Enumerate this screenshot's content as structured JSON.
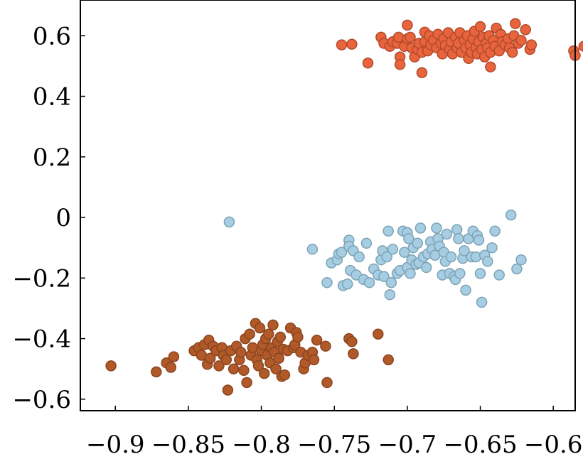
{
  "chart_data": {
    "type": "scatter",
    "title": "",
    "xlabel": "",
    "ylabel": "",
    "xlim": [
      -0.924,
      -0.585
    ],
    "ylim": [
      -0.638,
      0.718
    ],
    "grid": false,
    "legend": "none",
    "x_ticks": [
      -0.9,
      -0.85,
      -0.8,
      -0.75,
      -0.7,
      -0.65,
      -0.6
    ],
    "x_tick_labels": [
      "−0.9",
      "−0.85",
      "−0.8",
      "−0.75",
      "−0.7",
      "−0.65",
      "−0.6"
    ],
    "y_ticks": [
      -0.6,
      -0.4,
      -0.2,
      0,
      0.2,
      0.4,
      0.6
    ],
    "y_tick_labels": [
      "−0.6",
      "−0.4",
      "−0.2",
      "0",
      "0.2",
      "0.4",
      "0.6"
    ],
    "series": [
      {
        "color": "#e8643c",
        "edge": "#b24a2c",
        "points": [
          [
            -0.745,
            0.57
          ],
          [
            -0.738,
            0.572
          ],
          [
            -0.727,
            0.51
          ],
          [
            -0.718,
            0.595
          ],
          [
            -0.716,
            0.575
          ],
          [
            -0.712,
            0.565
          ],
          [
            -0.71,
            0.58
          ],
          [
            -0.707,
            0.575
          ],
          [
            -0.706,
            0.595
          ],
          [
            -0.705,
            0.53
          ],
          [
            -0.705,
            0.505
          ],
          [
            -0.702,
            0.565
          ],
          [
            -0.7,
            0.59
          ],
          [
            -0.7,
            0.635
          ],
          [
            -0.698,
            0.595
          ],
          [
            -0.697,
            0.56
          ],
          [
            -0.695,
            0.53
          ],
          [
            -0.693,
            0.555
          ],
          [
            -0.692,
            0.575
          ],
          [
            -0.69,
            0.545
          ],
          [
            -0.69,
            0.478
          ],
          [
            -0.688,
            0.612
          ],
          [
            -0.688,
            0.58
          ],
          [
            -0.686,
            0.55
          ],
          [
            -0.685,
            0.6
          ],
          [
            -0.684,
            0.57
          ],
          [
            -0.682,
            0.585
          ],
          [
            -0.68,
            0.56
          ],
          [
            -0.679,
            0.605
          ],
          [
            -0.677,
            0.575
          ],
          [
            -0.676,
            0.54
          ],
          [
            -0.675,
            0.59
          ],
          [
            -0.674,
            0.568
          ],
          [
            -0.672,
            0.61
          ],
          [
            -0.671,
            0.555
          ],
          [
            -0.67,
            0.58
          ],
          [
            -0.669,
            0.54
          ],
          [
            -0.667,
            0.595
          ],
          [
            -0.666,
            0.56
          ],
          [
            -0.665,
            0.575
          ],
          [
            -0.664,
            0.61
          ],
          [
            -0.663,
            0.545
          ],
          [
            -0.661,
            0.585
          ],
          [
            -0.66,
            0.56
          ],
          [
            -0.659,
            0.6
          ],
          [
            -0.658,
            0.525
          ],
          [
            -0.657,
            0.57
          ],
          [
            -0.656,
            0.545
          ],
          [
            -0.655,
            0.59
          ],
          [
            -0.654,
            0.615
          ],
          [
            -0.653,
            0.56
          ],
          [
            -0.652,
            0.54
          ],
          [
            -0.651,
            0.58
          ],
          [
            -0.65,
            0.63
          ],
          [
            -0.649,
            0.555
          ],
          [
            -0.648,
            0.595
          ],
          [
            -0.647,
            0.53
          ],
          [
            -0.646,
            0.575
          ],
          [
            -0.645,
            0.56
          ],
          [
            -0.644,
            0.6
          ],
          [
            -0.643,
            0.545
          ],
          [
            -0.643,
            0.497
          ],
          [
            -0.641,
            0.585
          ],
          [
            -0.64,
            0.565
          ],
          [
            -0.639,
            0.625
          ],
          [
            -0.637,
            0.55
          ],
          [
            -0.636,
            0.605
          ],
          [
            -0.635,
            0.58
          ],
          [
            -0.633,
            0.57
          ],
          [
            -0.631,
            0.59
          ],
          [
            -0.63,
            0.56
          ],
          [
            -0.628,
            0.545
          ],
          [
            -0.627,
            0.6
          ],
          [
            -0.626,
            0.64
          ],
          [
            -0.624,
            0.575
          ],
          [
            -0.622,
            0.585
          ],
          [
            -0.619,
            0.62
          ],
          [
            -0.616,
            0.555
          ],
          [
            -0.615,
            0.57
          ],
          [
            -0.586,
            0.55
          ],
          [
            -0.585,
            0.535
          ],
          [
            -0.579,
            0.565
          ],
          [
            -0.575,
            0.545
          ]
        ]
      },
      {
        "color": "#a6cde2",
        "edge": "#7ca3b6",
        "points": [
          [
            -0.822,
            -0.015
          ],
          [
            -0.765,
            -0.105
          ],
          [
            -0.755,
            -0.215
          ],
          [
            -0.752,
            -0.15
          ],
          [
            -0.748,
            -0.14
          ],
          [
            -0.747,
            -0.12
          ],
          [
            -0.745,
            -0.115
          ],
          [
            -0.744,
            -0.225
          ],
          [
            -0.741,
            -0.22
          ],
          [
            -0.74,
            -0.075
          ],
          [
            -0.74,
            -0.095
          ],
          [
            -0.739,
            -0.175
          ],
          [
            -0.737,
            -0.11
          ],
          [
            -0.735,
            -0.19
          ],
          [
            -0.733,
            -0.13
          ],
          [
            -0.73,
            -0.205
          ],
          [
            -0.728,
            -0.085
          ],
          [
            -0.726,
            -0.215
          ],
          [
            -0.723,
            -0.17
          ],
          [
            -0.72,
            -0.19
          ],
          [
            -0.718,
            -0.14
          ],
          [
            -0.717,
            -0.11
          ],
          [
            -0.716,
            -0.195
          ],
          [
            -0.714,
            -0.13
          ],
          [
            -0.713,
            -0.045
          ],
          [
            -0.712,
            -0.255
          ],
          [
            -0.711,
            -0.215
          ],
          [
            -0.71,
            -0.105
          ],
          [
            -0.707,
            -0.185
          ],
          [
            -0.705,
            -0.175
          ],
          [
            -0.703,
            -0.045
          ],
          [
            -0.702,
            -0.115
          ],
          [
            -0.7,
            -0.05
          ],
          [
            -0.7,
            -0.165
          ],
          [
            -0.699,
            -0.07
          ],
          [
            -0.698,
            -0.185
          ],
          [
            -0.697,
            -0.14
          ],
          [
            -0.696,
            -0.1
          ],
          [
            -0.694,
            -0.155
          ],
          [
            -0.693,
            -0.085
          ],
          [
            -0.692,
            -0.15
          ],
          [
            -0.691,
            -0.035
          ],
          [
            -0.689,
            -0.13
          ],
          [
            -0.687,
            -0.165
          ],
          [
            -0.686,
            -0.12
          ],
          [
            -0.684,
            -0.08
          ],
          [
            -0.683,
            -0.105
          ],
          [
            -0.681,
            -0.125
          ],
          [
            -0.68,
            -0.035
          ],
          [
            -0.679,
            -0.07
          ],
          [
            -0.678,
            -0.095
          ],
          [
            -0.676,
            -0.19
          ],
          [
            -0.675,
            -0.115
          ],
          [
            -0.674,
            -0.145
          ],
          [
            -0.673,
            -0.055
          ],
          [
            -0.671,
            -0.185
          ],
          [
            -0.67,
            -0.13
          ],
          [
            -0.668,
            -0.195
          ],
          [
            -0.667,
            -0.205
          ],
          [
            -0.666,
            -0.04
          ],
          [
            -0.665,
            -0.07
          ],
          [
            -0.664,
            -0.185
          ],
          [
            -0.662,
            -0.135
          ],
          [
            -0.661,
            -0.11
          ],
          [
            -0.66,
            -0.24
          ],
          [
            -0.658,
            -0.07
          ],
          [
            -0.656,
            -0.13
          ],
          [
            -0.655,
            -0.045
          ],
          [
            -0.653,
            -0.13
          ],
          [
            -0.652,
            -0.06
          ],
          [
            -0.651,
            -0.075
          ],
          [
            -0.65,
            -0.185
          ],
          [
            -0.649,
            -0.28
          ],
          [
            -0.647,
            -0.125
          ],
          [
            -0.645,
            -0.145
          ],
          [
            -0.642,
            -0.1
          ],
          [
            -0.64,
            -0.045
          ],
          [
            -0.637,
            -0.19
          ],
          [
            -0.629,
            0.008
          ],
          [
            -0.625,
            -0.17
          ],
          [
            -0.622,
            -0.14
          ]
        ]
      },
      {
        "color": "#b15928",
        "edge": "#8a4520",
        "points": [
          [
            -0.903,
            -0.49
          ],
          [
            -0.872,
            -0.51
          ],
          [
            -0.865,
            -0.48
          ],
          [
            -0.862,
            -0.495
          ],
          [
            -0.86,
            -0.46
          ],
          [
            -0.846,
            -0.44
          ],
          [
            -0.843,
            -0.43
          ],
          [
            -0.841,
            -0.455
          ],
          [
            -0.839,
            -0.42
          ],
          [
            -0.837,
            -0.485
          ],
          [
            -0.836,
            -0.405
          ],
          [
            -0.835,
            -0.465
          ],
          [
            -0.833,
            -0.425
          ],
          [
            -0.831,
            -0.44
          ],
          [
            -0.829,
            -0.49
          ],
          [
            -0.827,
            -0.43
          ],
          [
            -0.826,
            -0.455
          ],
          [
            -0.824,
            -0.47
          ],
          [
            -0.823,
            -0.57
          ],
          [
            -0.821,
            -0.44
          ],
          [
            -0.819,
            -0.5
          ],
          [
            -0.817,
            -0.425
          ],
          [
            -0.815,
            -0.47
          ],
          [
            -0.814,
            -0.445
          ],
          [
            -0.812,
            -0.505
          ],
          [
            -0.811,
            -0.4
          ],
          [
            -0.81,
            -0.545
          ],
          [
            -0.808,
            -0.385
          ],
          [
            -0.807,
            -0.455
          ],
          [
            -0.806,
            -0.43
          ],
          [
            -0.804,
            -0.35
          ],
          [
            -0.803,
            -0.47
          ],
          [
            -0.802,
            -0.49
          ],
          [
            -0.801,
            -0.365
          ],
          [
            -0.8,
            -0.44
          ],
          [
            -0.799,
            -0.42
          ],
          [
            -0.798,
            -0.515
          ],
          [
            -0.797,
            -0.4
          ],
          [
            -0.796,
            -0.455
          ],
          [
            -0.795,
            -0.385
          ],
          [
            -0.794,
            -0.48
          ],
          [
            -0.793,
            -0.43
          ],
          [
            -0.792,
            -0.355
          ],
          [
            -0.791,
            -0.445
          ],
          [
            -0.79,
            -0.5
          ],
          [
            -0.789,
            -0.41
          ],
          [
            -0.788,
            -0.465
          ],
          [
            -0.787,
            -0.395
          ],
          [
            -0.786,
            -0.525
          ],
          [
            -0.785,
            -0.435
          ],
          [
            -0.784,
            -0.52
          ],
          [
            -0.782,
            -0.44
          ],
          [
            -0.78,
            -0.365
          ],
          [
            -0.778,
            -0.43
          ],
          [
            -0.777,
            -0.42
          ],
          [
            -0.776,
            -0.38
          ],
          [
            -0.775,
            -0.395
          ],
          [
            -0.773,
            -0.445
          ],
          [
            -0.771,
            -0.5
          ],
          [
            -0.77,
            -0.48
          ],
          [
            -0.768,
            -0.455
          ],
          [
            -0.765,
            -0.445
          ],
          [
            -0.764,
            -0.47
          ],
          [
            -0.762,
            -0.405
          ],
          [
            -0.756,
            -0.425
          ],
          [
            -0.755,
            -0.545
          ],
          [
            -0.74,
            -0.4
          ],
          [
            -0.738,
            -0.41
          ],
          [
            -0.737,
            -0.45
          ],
          [
            -0.72,
            -0.385
          ],
          [
            -0.713,
            -0.47
          ]
        ]
      }
    ]
  }
}
